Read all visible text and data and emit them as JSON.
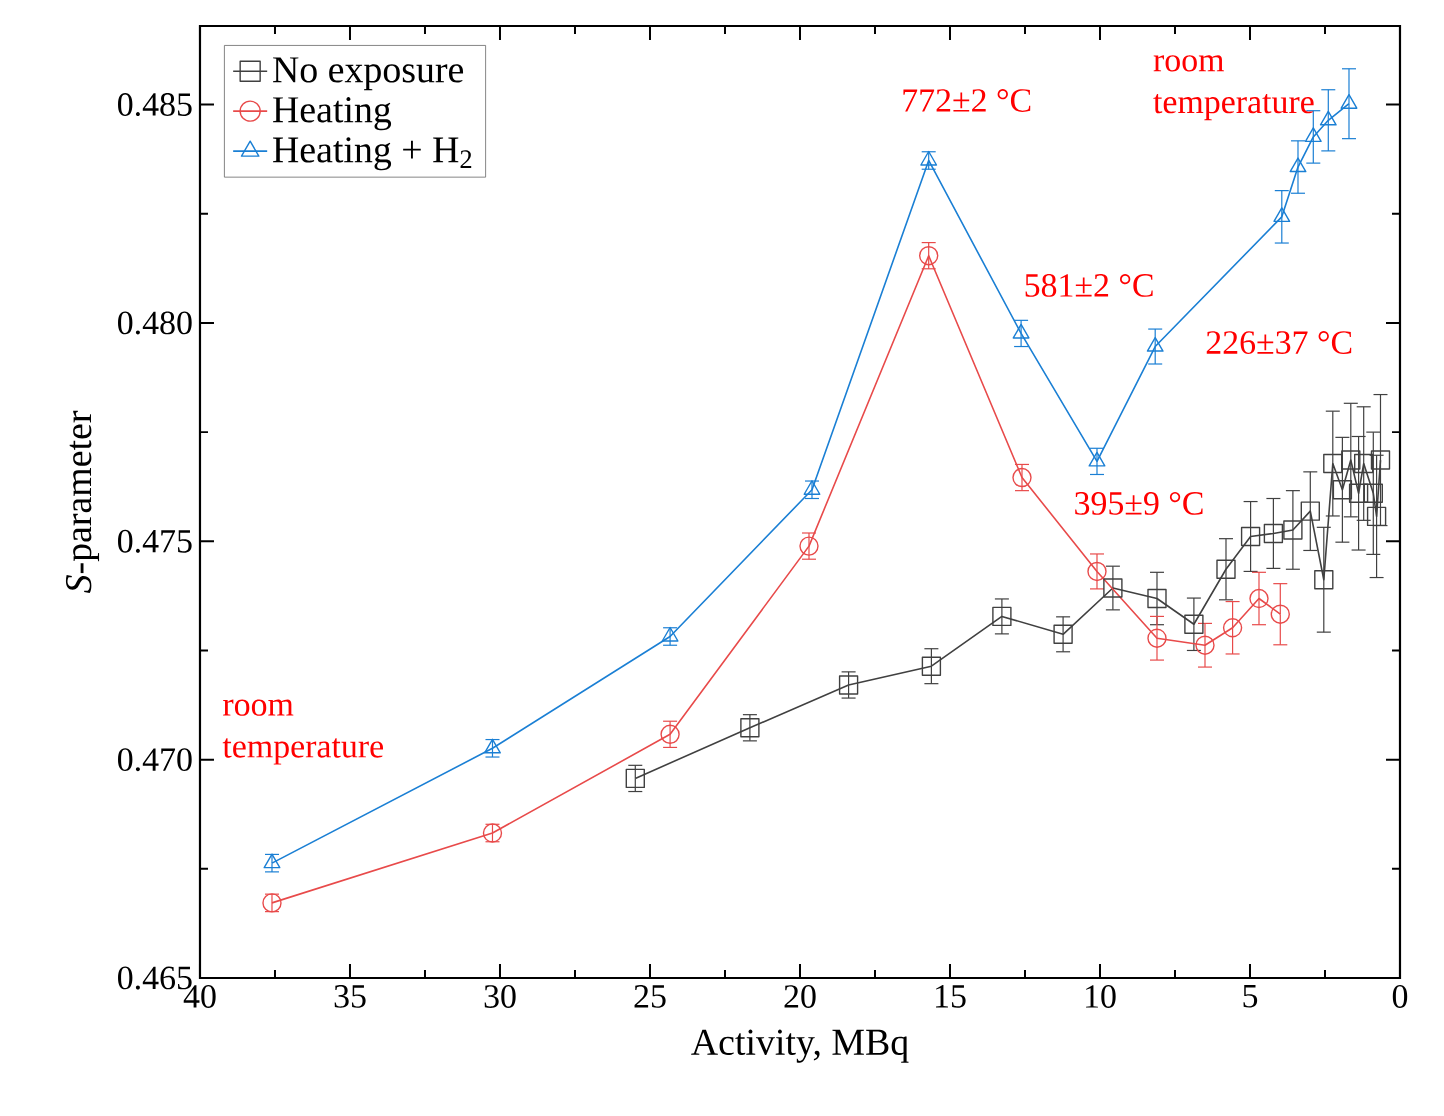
{
  "chart_data": {
    "type": "line",
    "xlabel": "Activity, MBq",
    "ylabel": "*S*-parameter",
    "xlim": [
      40,
      0
    ],
    "xticks": [
      40,
      35,
      30,
      25,
      20,
      15,
      10,
      5,
      0
    ],
    "ylim": [
      0.465,
      0.4868
    ],
    "yticks": [
      {
        "value": 0.465,
        "label": "0.465"
      },
      {
        "value": 0.47,
        "label": "0.470"
      },
      {
        "value": 0.475,
        "label": "0.475"
      },
      {
        "value": 0.48,
        "label": "0.480"
      },
      {
        "value": 0.485,
        "label": "0.485"
      }
    ],
    "legend": "top left",
    "grid": false,
    "line_style": "solid",
    "series": [
      {
        "name": "No exposure",
        "color": "#404040",
        "marker": "square",
        "x": [
          25.49,
          21.67,
          18.38,
          15.62,
          13.27,
          11.23,
          9.57,
          8.1,
          6.87,
          5.8,
          4.98,
          4.22,
          3.57,
          2.99,
          2.54,
          2.24,
          1.92,
          1.64,
          1.38,
          1.21,
          0.89,
          0.78,
          0.65
        ],
        "values": [
          0.46957,
          0.47073,
          0.47171,
          0.47214,
          0.47328,
          0.47287,
          0.47393,
          0.47369,
          0.4731,
          0.47436,
          0.47511,
          0.47518,
          0.47526,
          0.47569,
          0.47412,
          0.47678,
          0.47618,
          0.47686,
          0.4761,
          0.47678,
          0.4761,
          0.47557,
          0.47686
        ],
        "errors": [
          0.0003,
          0.0003,
          0.0003,
          0.0004,
          0.0004,
          0.0004,
          0.0005,
          0.0006,
          0.0006,
          0.0007,
          0.0008,
          0.0008,
          0.0009,
          0.0009,
          0.0012,
          0.0012,
          0.0012,
          0.0013,
          0.0013,
          0.0013,
          0.0014,
          0.0014,
          0.0015
        ]
      },
      {
        "name": "Heating",
        "color": "#e84a4a",
        "marker": "circle",
        "x": [
          37.6,
          30.25,
          24.33,
          19.7,
          15.71,
          12.6,
          10.1,
          8.1,
          6.5,
          5.58,
          4.7,
          3.99
        ],
        "values": [
          0.46672,
          0.46832,
          0.47058,
          0.47489,
          0.48154,
          0.47646,
          0.47431,
          0.47278,
          0.47262,
          0.47302,
          0.47369,
          0.47333
        ],
        "errors": [
          0.0002,
          0.0002,
          0.0003,
          0.0003,
          0.0003,
          0.0003,
          0.0004,
          0.0005,
          0.0005,
          0.0006,
          0.0006,
          0.0007
        ]
      },
      {
        "name": "Heating + H$_{2}$",
        "color": "#1a7fd4",
        "marker": "triangle",
        "x": [
          37.6,
          30.25,
          24.33,
          19.6,
          15.71,
          12.63,
          10.1,
          8.16,
          3.94,
          3.4,
          2.89,
          2.39,
          1.7
        ],
        "values": [
          0.46763,
          0.47026,
          0.47282,
          0.47618,
          0.48372,
          0.47976,
          0.47683,
          0.47946,
          0.48243,
          0.48357,
          0.48426,
          0.48464,
          0.48502
        ],
        "errors": [
          0.0002,
          0.0002,
          0.0002,
          0.0002,
          0.0002,
          0.0003,
          0.0003,
          0.0004,
          0.0006,
          0.0006,
          0.0006,
          0.0007,
          0.0008
        ]
      }
    ],
    "annotations": [
      {
        "text": "room temperature",
        "x": 37.6,
        "y": 0.46763
      },
      {
        "text": "772±2 °C",
        "x": 15.71,
        "y": 0.48372
      },
      {
        "text": "581±2 °C",
        "x": 12.63,
        "y": 0.47976
      },
      {
        "text": "395±9 °C",
        "x": 10.1,
        "y": 0.47683
      },
      {
        "text": "226±37 °C",
        "x": 8.16,
        "y": 0.47946
      },
      {
        "text": "room temperature",
        "x": 1.7,
        "y": 0.48502
      }
    ]
  }
}
